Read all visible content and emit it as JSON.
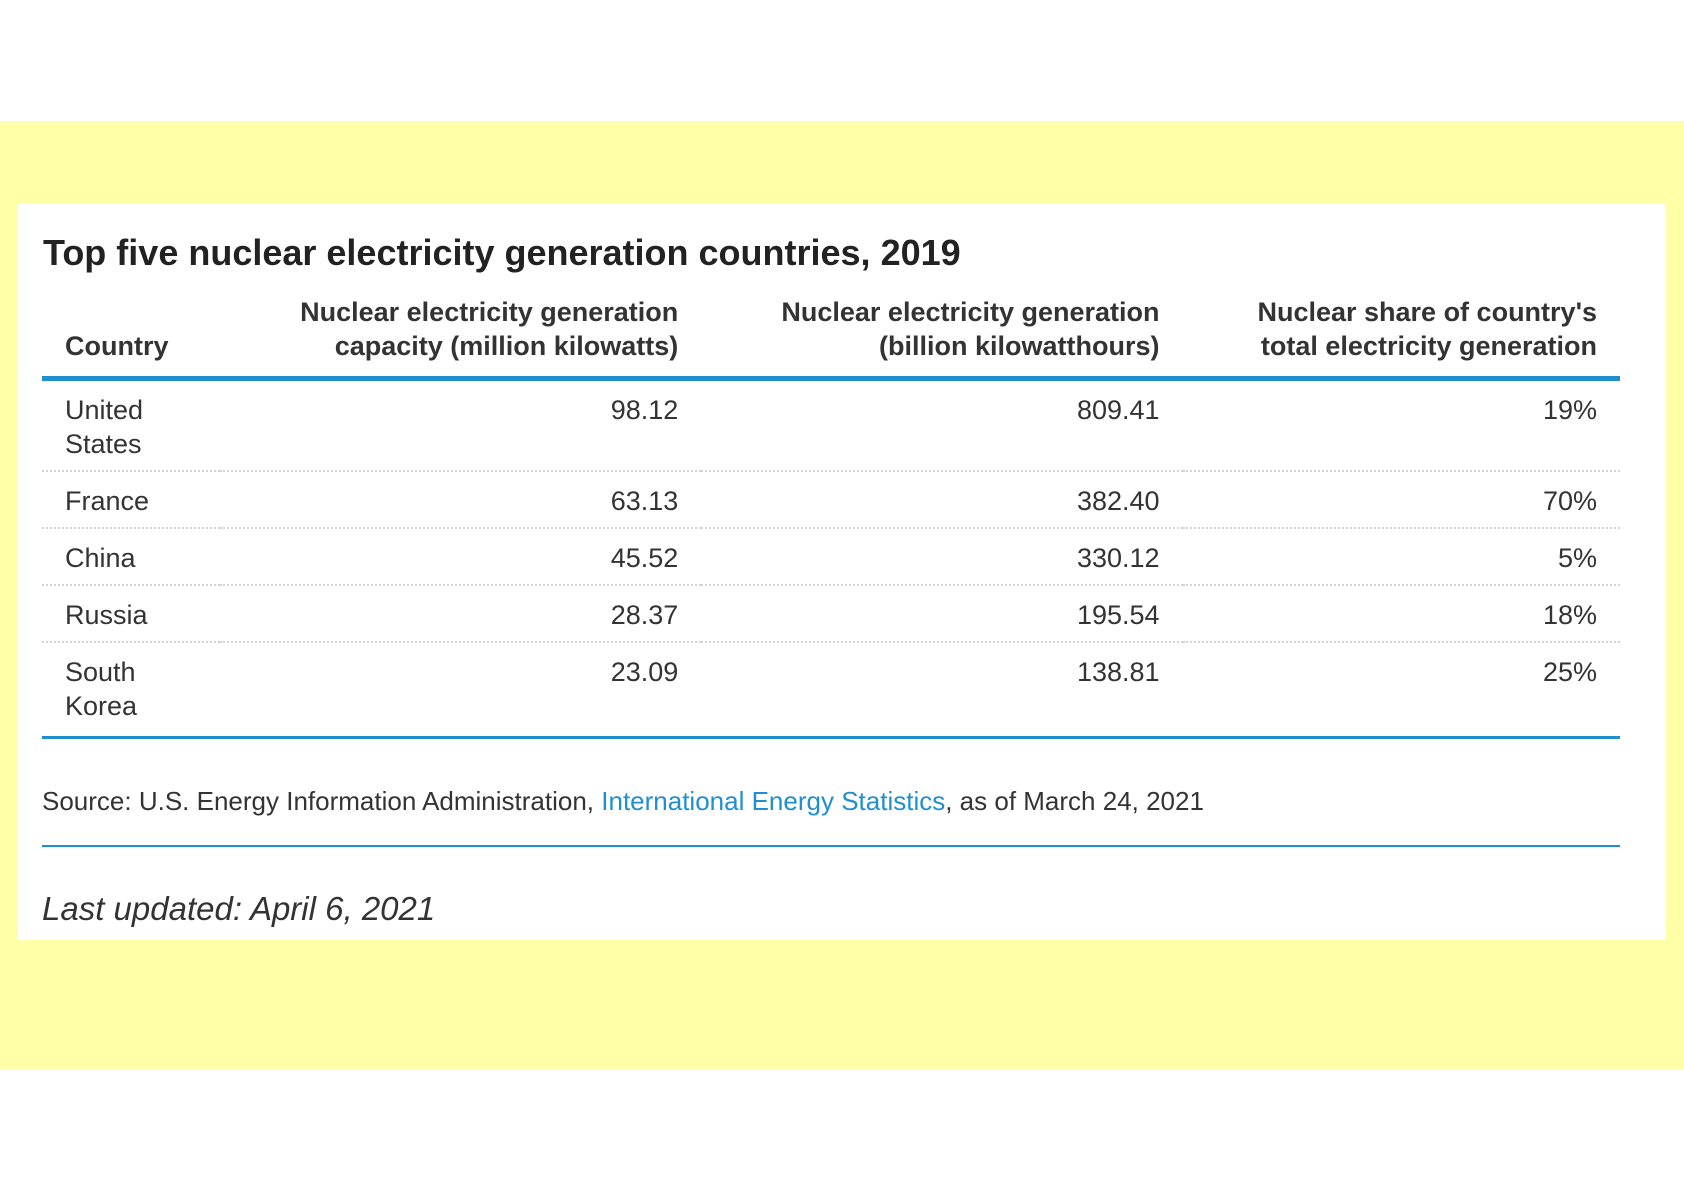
{
  "title": "Top five nuclear electricity generation countries, 2019",
  "table": {
    "headers": [
      {
        "line1": "",
        "line2": "Country"
      },
      {
        "line1": "Nuclear electricity generation",
        "line2": "capacity (million kilowatts)"
      },
      {
        "line1": "Nuclear electricity generation",
        "line2": "(billion kilowatthours)"
      },
      {
        "line1": "Nuclear share of country's",
        "line2": "total electricity generation"
      }
    ],
    "rows": [
      {
        "country_line1": "United",
        "country_line2": "States",
        "capacity": "98.12",
        "generation": "809.41",
        "share": "19%"
      },
      {
        "country_line1": "France",
        "country_line2": "",
        "capacity": "63.13",
        "generation": "382.40",
        "share": "70%"
      },
      {
        "country_line1": "China",
        "country_line2": "",
        "capacity": "45.52",
        "generation": "330.12",
        "share": "5%"
      },
      {
        "country_line1": "Russia",
        "country_line2": "",
        "capacity": "28.37",
        "generation": "195.54",
        "share": "18%"
      },
      {
        "country_line1": "South",
        "country_line2": "Korea",
        "capacity": "23.09",
        "generation": "138.81",
        "share": "25%"
      }
    ]
  },
  "source": {
    "prefix": "Source: U.S. Energy Information Administration, ",
    "link_text": "International Energy Statistics",
    "suffix": ", as of March 24, 2021"
  },
  "last_updated": "Last updated: April 6, 2021",
  "colors": {
    "background_band": "#ffffa8",
    "accent": "#1f8fd0",
    "text": "#333333"
  }
}
